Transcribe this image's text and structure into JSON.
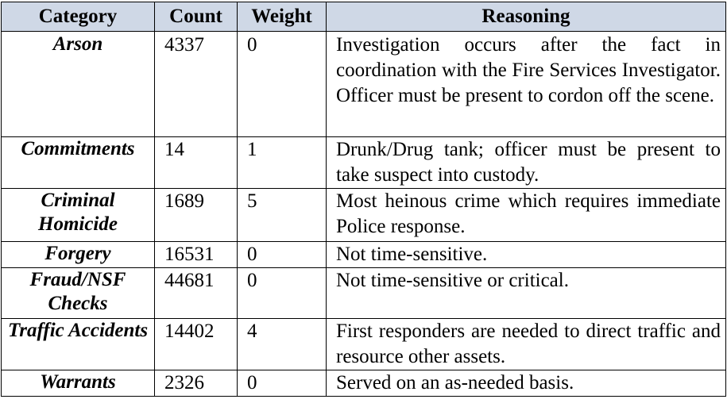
{
  "headers": {
    "category": "Category",
    "count": "Count",
    "weight": "Weight",
    "reasoning": "Reasoning"
  },
  "rows": [
    {
      "category": "Arson",
      "count": "4337",
      "weight": "0",
      "reasoning": "Investigation occurs after the fact in coordination with the Fire Services Investigator. Officer must be present to cordon off the scene."
    },
    {
      "category": "Commitments",
      "count": "14",
      "weight": "1",
      "reasoning": "Drunk/Drug tank; officer must be present to take suspect into custody."
    },
    {
      "category": "Criminal Homicide",
      "count": "1689",
      "weight": "5",
      "reasoning": "Most heinous crime which requires immediate Police response."
    },
    {
      "category": "Forgery",
      "count": "16531",
      "weight": "0",
      "reasoning": "Not time-sensitive."
    },
    {
      "category": "Fraud/NSF Checks",
      "count": "44681",
      "weight": "0",
      "reasoning": "Not time-sensitive or critical."
    },
    {
      "category": "Traffic Accidents",
      "count": "14402",
      "weight": "4",
      "reasoning": "First responders are needed to direct traffic and resource other assets."
    },
    {
      "category": "Warrants",
      "count": "2326",
      "weight": "0",
      "reasoning": "Served on an as-needed basis."
    }
  ]
}
